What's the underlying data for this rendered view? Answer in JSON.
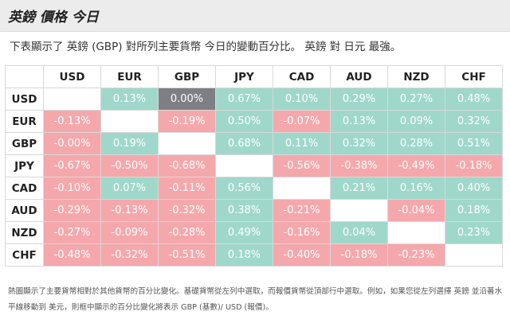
{
  "header": {
    "title": "英鎊 價格 今日"
  },
  "subtitle": "下表顯示了 英鎊 (GBP) 對所列主要貨幣 今日的變動百分比。 英鎊 對 日元 最強。",
  "currencies": [
    "USD",
    "EUR",
    "GBP",
    "JPY",
    "CAD",
    "AUD",
    "NZD",
    "CHF"
  ],
  "rows": [
    {
      "label": "USD",
      "cells": [
        "",
        "0.13%",
        "0.00%",
        "0.67%",
        "0.10%",
        "0.29%",
        "0.27%",
        "0.48%"
      ]
    },
    {
      "label": "EUR",
      "cells": [
        "-0.13%",
        "",
        "-0.19%",
        "0.50%",
        "-0.07%",
        "0.13%",
        "0.09%",
        "0.32%"
      ]
    },
    {
      "label": "GBP",
      "cells": [
        "-0.00%",
        "0.19%",
        "",
        "0.68%",
        "0.11%",
        "0.32%",
        "0.28%",
        "0.51%"
      ]
    },
    {
      "label": "JPY",
      "cells": [
        "-0.67%",
        "-0.50%",
        "-0.68%",
        "",
        "-0.56%",
        "-0.38%",
        "-0.49%",
        "-0.18%"
      ]
    },
    {
      "label": "CAD",
      "cells": [
        "-0.10%",
        "0.07%",
        "-0.11%",
        "0.56%",
        "",
        "0.21%",
        "0.16%",
        "0.40%"
      ]
    },
    {
      "label": "AUD",
      "cells": [
        "-0.29%",
        "-0.13%",
        "-0.32%",
        "0.38%",
        "-0.21%",
        "",
        "-0.04%",
        "0.18%"
      ]
    },
    {
      "label": "NZD",
      "cells": [
        "-0.27%",
        "-0.09%",
        "-0.28%",
        "0.49%",
        "-0.16%",
        "0.04%",
        "",
        "0.23%"
      ]
    },
    {
      "label": "CHF",
      "cells": [
        "-0.48%",
        "-0.32%",
        "-0.51%",
        "0.18%",
        "-0.40%",
        "-0.18%",
        "-0.23%",
        ""
      ]
    }
  ],
  "colors": {
    "positive": "#9fd8cb",
    "negative": "#f5a8ac",
    "neutral": "#7d7f84"
  },
  "footnote": "熱圖顯示了主要貨幣相對於其他貨幣的百分比變化。基礎貨幣從左列中選取，而報價貨幣從頂部行中選取。例如，如果您從左列選擇 英鎊 並沿著水平線移動到 美元，則框中顯示的百分比變化將表示 GBP (基數)/ USD (報價)。"
}
